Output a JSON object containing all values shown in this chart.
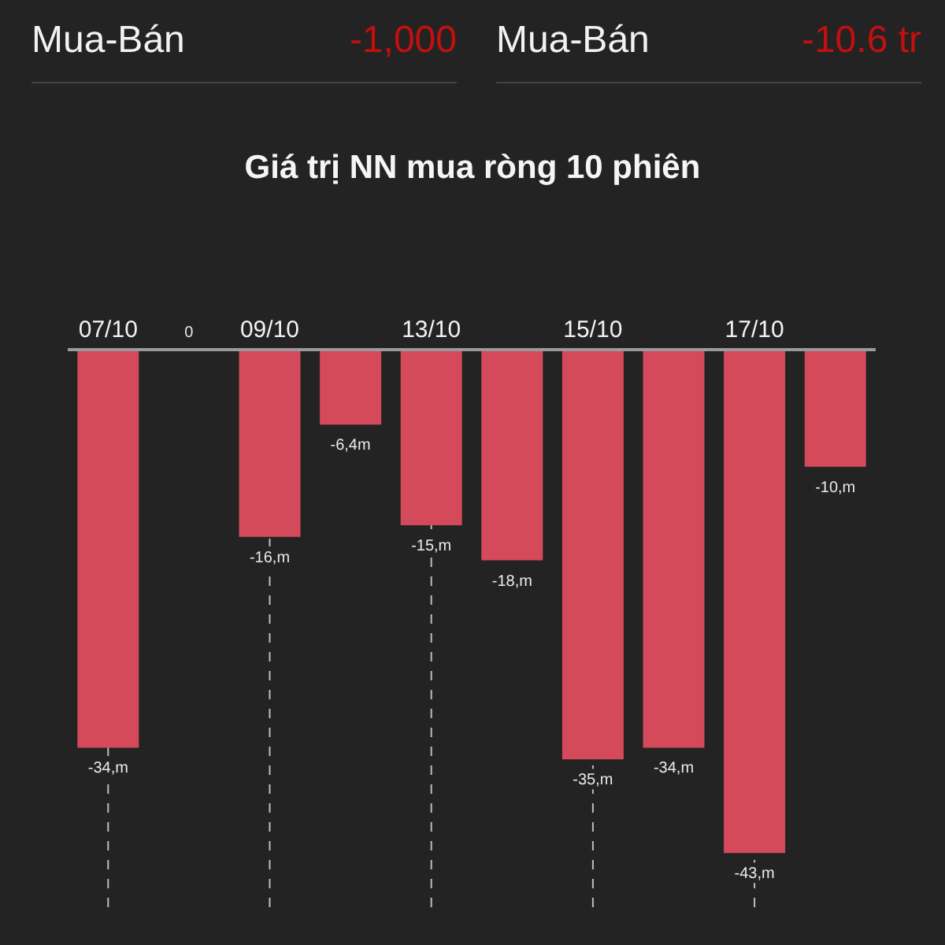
{
  "chart_data": {
    "type": "bar",
    "title": "Giá trị NN mua ròng 10 phiên",
    "annotations": [
      "Mua-Bán",
      "-1,000",
      "Mua-Bán",
      "-10.6 tr"
    ],
    "categories": [
      "07/10",
      null,
      "09/10",
      null,
      "13/10",
      null,
      "15/10",
      null,
      "17/10",
      null
    ],
    "values": [
      -34,
      0,
      -16,
      -6.4,
      -15,
      -18,
      -35,
      -34,
      -43,
      -10
    ],
    "value_labels": [
      "-34,m",
      "0",
      "-16,m",
      "-6,4m",
      "-15,m",
      "-18,m",
      "-35,m",
      "-34,m",
      "-43,m",
      "-10,m"
    ],
    "color": "#d44a5a",
    "grid": "x"
  }
}
